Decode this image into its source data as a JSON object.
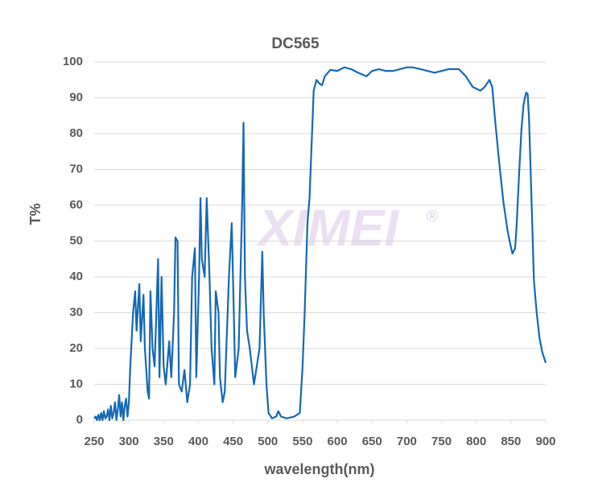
{
  "chart_data": {
    "type": "line",
    "title": "DC565",
    "x_label": "wavelength(nm)",
    "y_label": "T%",
    "watermark": "XIMEI",
    "watermark_mark": "®",
    "x": [
      250,
      252,
      254,
      256,
      258,
      260,
      262,
      264,
      266,
      268,
      270,
      272,
      274,
      276,
      278,
      280,
      282,
      284,
      286,
      288,
      290,
      292,
      294,
      296,
      298,
      300,
      302,
      306,
      309,
      311,
      315,
      317,
      321,
      323,
      327,
      329,
      331,
      334,
      337,
      342,
      344,
      347,
      350,
      353,
      358,
      361,
      365,
      367,
      370,
      372,
      376,
      380,
      384,
      388,
      391,
      395,
      397,
      401,
      403,
      405,
      409,
      412,
      416,
      419,
      423,
      425,
      429,
      431,
      435,
      438,
      444,
      448,
      451,
      453,
      458,
      463,
      465,
      467,
      470,
      474,
      480,
      484,
      488,
      492,
      494,
      498,
      501,
      506,
      512,
      515,
      519,
      527,
      538,
      546,
      550,
      553,
      557,
      560,
      566,
      570,
      574,
      578,
      582,
      590,
      600,
      610,
      620,
      630,
      642,
      650,
      660,
      670,
      680,
      690,
      700,
      708,
      720,
      730,
      740,
      750,
      760,
      775,
      785,
      795,
      806,
      812,
      819,
      823,
      827,
      833,
      839,
      845,
      848,
      852,
      856,
      858,
      862,
      865,
      868,
      870,
      872,
      874,
      876,
      879,
      883,
      887,
      891,
      895,
      900
    ],
    "series": [
      {
        "name": "DC565",
        "color": "#1468b4",
        "values": [
          0.5,
          1,
          0,
          1.5,
          0,
          2,
          0,
          2.5,
          0.5,
          1,
          3,
          0,
          4,
          0.5,
          2,
          5,
          0,
          3,
          7,
          1,
          5,
          0,
          4,
          6,
          1,
          5,
          15,
          30,
          36,
          25,
          38,
          22,
          35,
          20,
          8,
          6,
          36,
          20,
          15,
          45,
          12,
          40,
          15,
          10,
          22,
          12,
          30,
          51,
          50,
          10,
          8,
          14,
          5,
          10,
          40,
          48,
          12,
          40,
          62,
          45,
          40,
          62,
          40,
          20,
          10,
          36,
          30,
          12,
          5,
          8,
          40,
          55,
          30,
          12,
          20,
          60,
          83,
          40,
          25,
          20,
          10,
          15,
          20,
          47,
          30,
          10,
          2,
          0.5,
          1,
          2.5,
          1,
          0.5,
          1,
          2,
          15,
          30,
          55,
          62,
          92,
          95,
          94,
          93.5,
          96,
          97.8,
          97.5,
          98.5,
          98,
          97,
          96,
          97.5,
          98,
          97.5,
          97.5,
          98,
          98.5,
          98.5,
          98,
          97.5,
          97,
          97.5,
          98,
          98,
          96,
          93,
          92,
          93,
          95,
          93,
          84,
          72,
          61,
          53,
          50,
          46.5,
          48,
          54,
          70,
          81,
          88,
          90,
          91.5,
          91,
          84,
          65,
          39,
          30,
          23,
          19,
          16
        ]
      }
    ],
    "xlim": [
      250,
      900
    ],
    "xticks": [
      250,
      300,
      350,
      400,
      450,
      500,
      550,
      600,
      650,
      700,
      750,
      800,
      850,
      900
    ],
    "ylim": [
      0,
      100
    ],
    "yticks": [
      0,
      10,
      20,
      30,
      40,
      50,
      60,
      70,
      80,
      90,
      100
    ],
    "grid": true
  }
}
